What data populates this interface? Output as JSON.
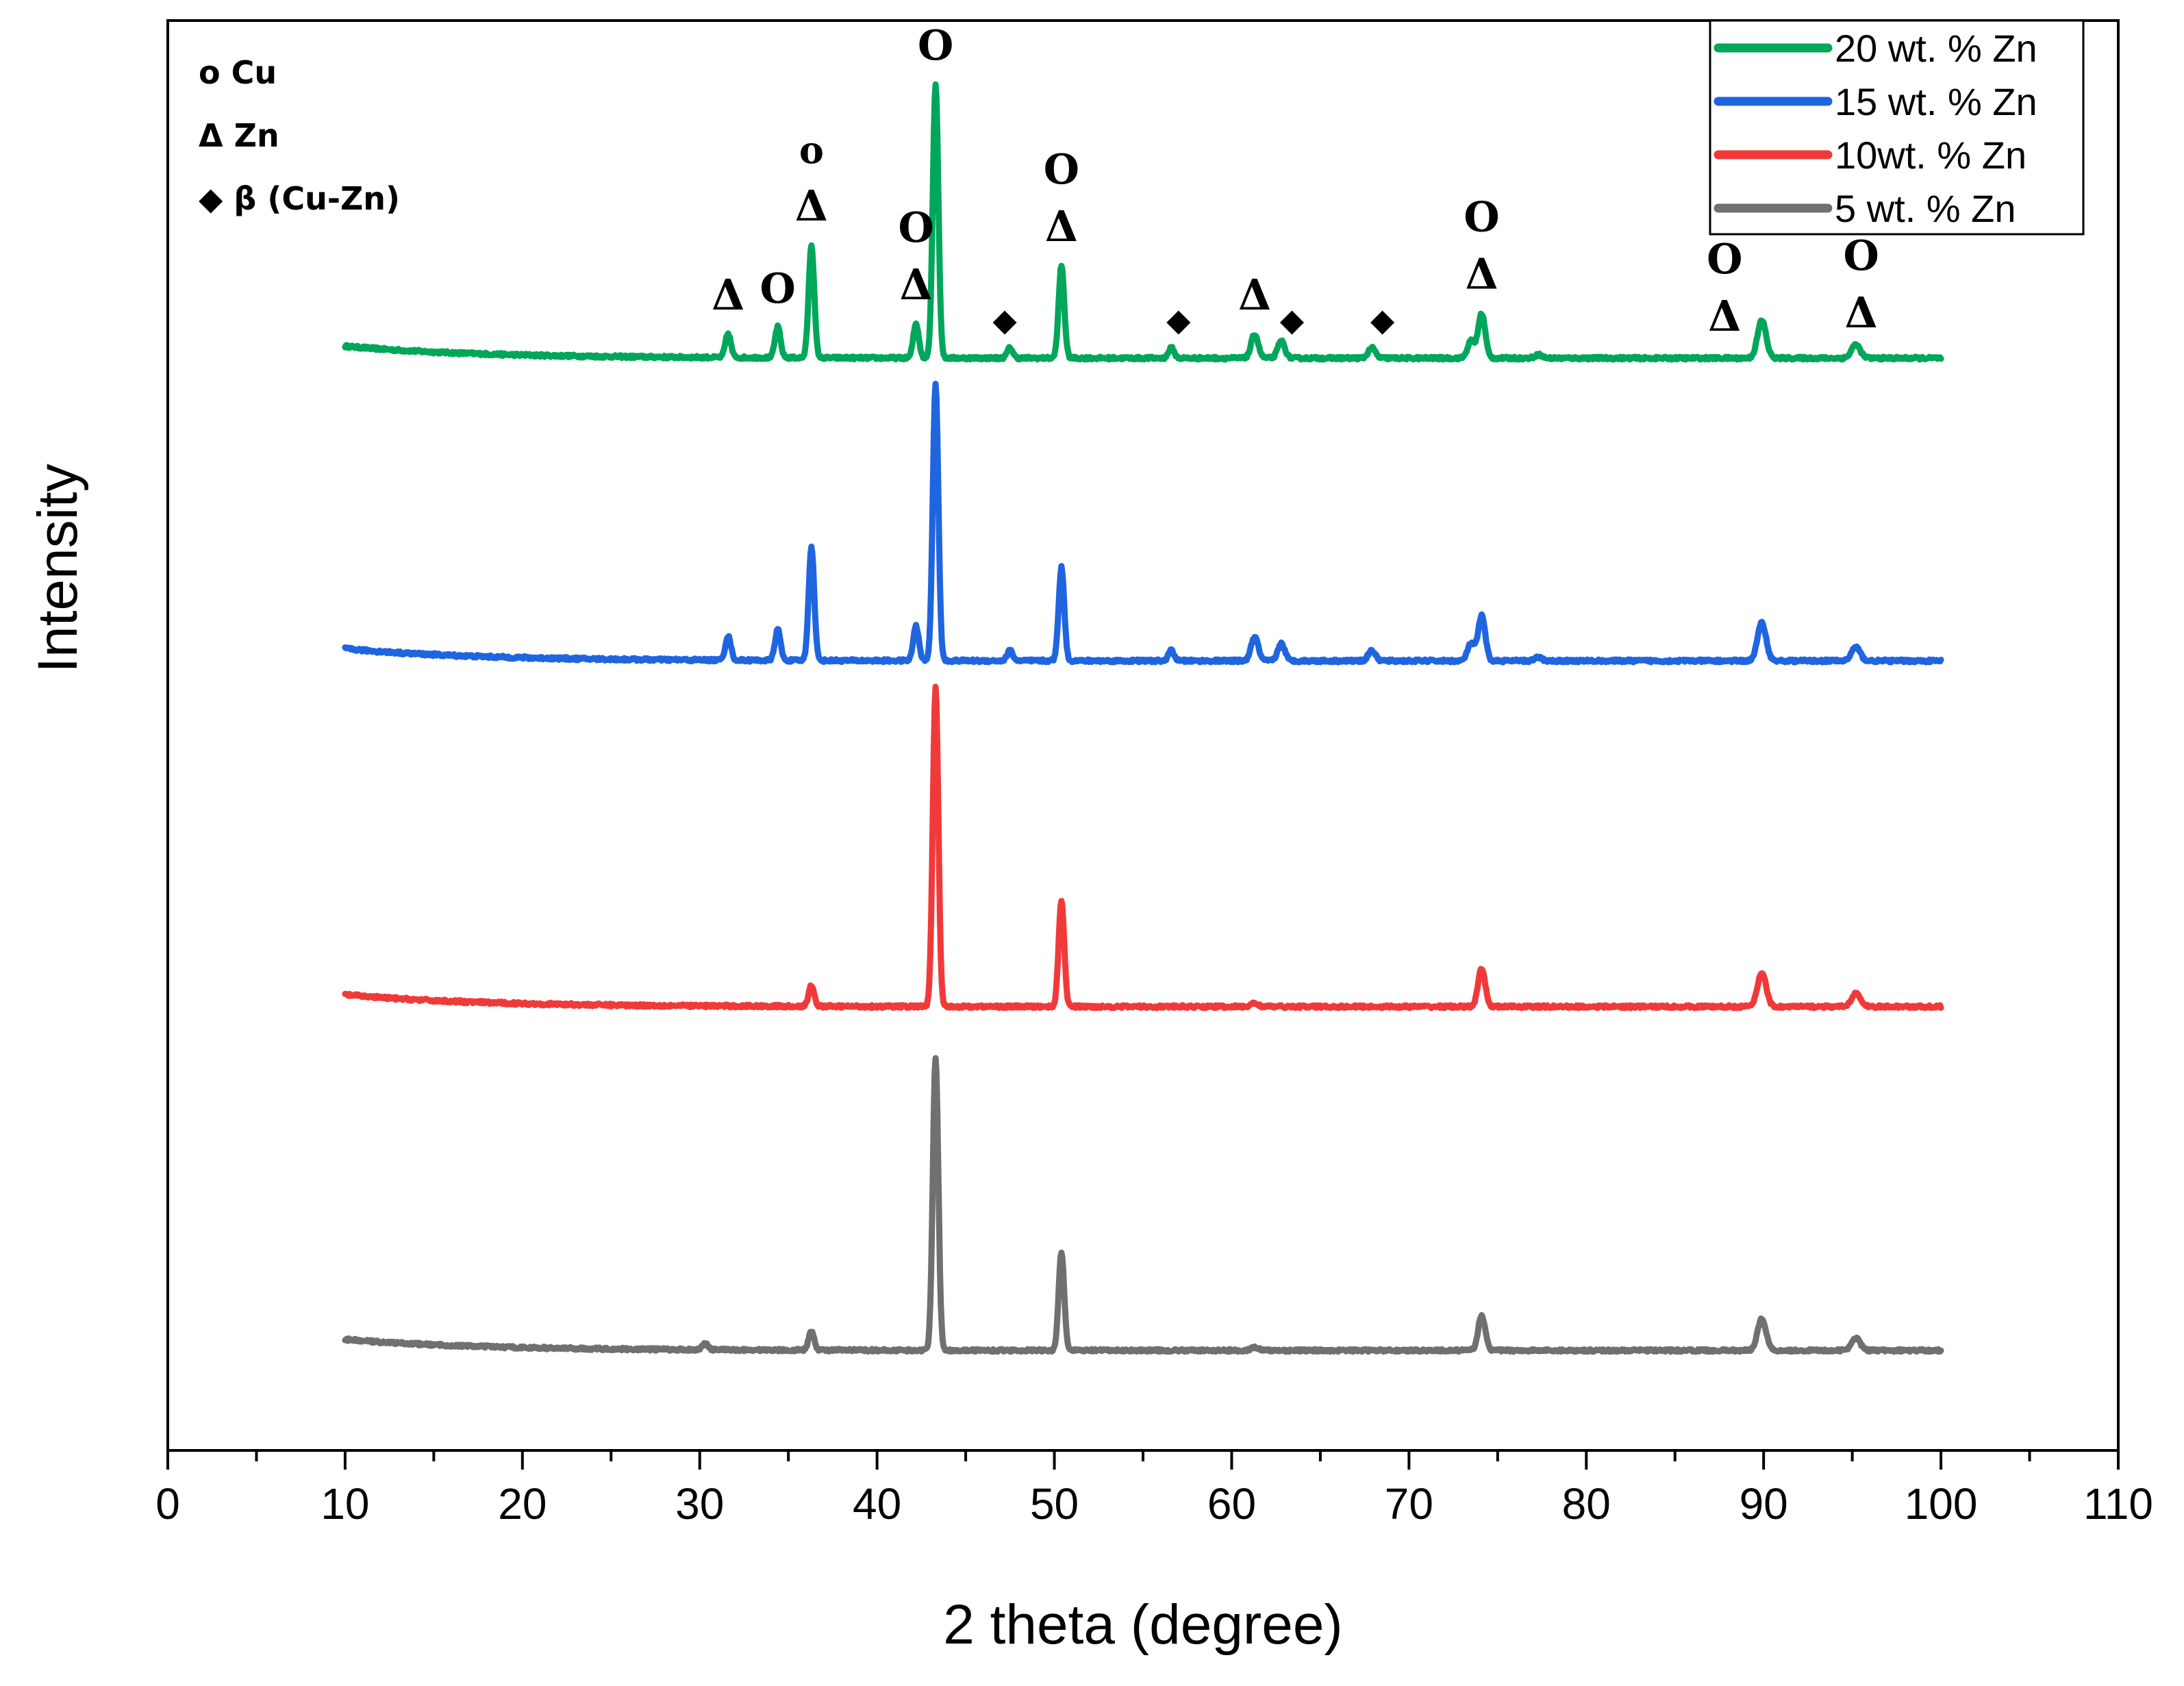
{
  "chart_data": {
    "type": "line",
    "title": "",
    "xlabel": "2 theta (degree)",
    "ylabel": "Intensity",
    "xlim": [
      0,
      110
    ],
    "x_ticks": [
      "0",
      "10",
      "20",
      "30",
      "40",
      "50",
      "60",
      "70",
      "80",
      "90",
      "100",
      "110"
    ],
    "y_ticks_shown": false,
    "grid": false,
    "legend_position": "top-right",
    "peaks_2theta": [
      31.6,
      34.4,
      36.3,
      42.2,
      43.3,
      47.5,
      50.4,
      56.6,
      61.3,
      62.8,
      67.9,
      73.5,
      74.1,
      77.3,
      89.9,
      95.2
    ],
    "series": [
      {
        "name": "20 wt. % Zn",
        "color": "#00A65A",
        "offset": 3,
        "x_range": [
          10,
          100
        ],
        "peaks": [
          [
            31.6,
            0.07
          ],
          [
            34.4,
            0.09
          ],
          [
            36.3,
            0.33
          ],
          [
            42.2,
            0.1
          ],
          [
            43.3,
            0.8
          ],
          [
            47.5,
            0.03
          ],
          [
            50.4,
            0.27
          ],
          [
            56.6,
            0.03
          ],
          [
            61.3,
            0.07
          ],
          [
            62.8,
            0.05
          ],
          [
            67.9,
            0.03
          ],
          [
            73.5,
            0.05
          ],
          [
            74.1,
            0.13
          ],
          [
            77.3,
            0.01
          ],
          [
            89.9,
            0.11
          ],
          [
            95.2,
            0.04
          ]
        ]
      },
      {
        "name": "15 wt. % Zn",
        "color": "#1F65E0",
        "offset": 2,
        "x_range": [
          10,
          100
        ],
        "peaks": [
          [
            31.6,
            0.07
          ],
          [
            34.4,
            0.09
          ],
          [
            36.3,
            0.33
          ],
          [
            42.2,
            0.1
          ],
          [
            43.3,
            0.8
          ],
          [
            47.5,
            0.03
          ],
          [
            50.4,
            0.27
          ],
          [
            56.6,
            0.03
          ],
          [
            61.3,
            0.07
          ],
          [
            62.8,
            0.05
          ],
          [
            67.9,
            0.03
          ],
          [
            73.5,
            0.05
          ],
          [
            74.1,
            0.13
          ],
          [
            77.3,
            0.01
          ],
          [
            89.9,
            0.11
          ],
          [
            95.2,
            0.04
          ]
        ]
      },
      {
        "name": "10wt. % Zn",
        "color": "#F03A3A",
        "offset": 1,
        "x_range": [
          10,
          100
        ],
        "peaks": [
          [
            36.3,
            0.06
          ],
          [
            43.3,
            0.93
          ],
          [
            50.4,
            0.31
          ],
          [
            61.3,
            0.01
          ],
          [
            74.1,
            0.11
          ],
          [
            89.9,
            0.1
          ],
          [
            95.2,
            0.04
          ]
        ]
      },
      {
        "name": "5 wt. % Zn",
        "color": "#707070",
        "offset": 0,
        "x_range": [
          10,
          100
        ],
        "peaks": [
          [
            30.3,
            0.02
          ],
          [
            36.3,
            0.06
          ],
          [
            43.3,
            0.93
          ],
          [
            50.4,
            0.31
          ],
          [
            61.3,
            0.01
          ],
          [
            74.1,
            0.11
          ],
          [
            89.9,
            0.1
          ],
          [
            95.2,
            0.04
          ]
        ]
      }
    ],
    "phase_key": [
      {
        "symbol": "o",
        "label": "Cu"
      },
      {
        "symbol": "Δ",
        "label": "Zn"
      },
      {
        "symbol": "◆",
        "label": "β (Cu-Zn)"
      }
    ],
    "peak_annotations": [
      {
        "x": 31.6,
        "marks": [
          "Δ"
        ]
      },
      {
        "x": 34.4,
        "marks": [
          "O"
        ]
      },
      {
        "x": 36.3,
        "marks": [
          "o",
          "Δ"
        ]
      },
      {
        "x": 42.2,
        "marks": [
          "O",
          "Δ"
        ]
      },
      {
        "x": 43.3,
        "marks": [
          "O"
        ]
      },
      {
        "x": 47.2,
        "marks": [
          "◆"
        ]
      },
      {
        "x": 50.4,
        "marks": [
          "O",
          "Δ"
        ]
      },
      {
        "x": 57.0,
        "marks": [
          "◆"
        ]
      },
      {
        "x": 61.3,
        "marks": [
          "Δ"
        ]
      },
      {
        "x": 63.4,
        "marks": [
          "◆"
        ]
      },
      {
        "x": 68.5,
        "marks": [
          "◆"
        ]
      },
      {
        "x": 74.1,
        "marks": [
          "O",
          "Δ"
        ]
      },
      {
        "x": 87.8,
        "marks": [
          "O",
          "Δ"
        ]
      },
      {
        "x": 95.5,
        "marks": [
          "O",
          "Δ"
        ]
      }
    ]
  }
}
